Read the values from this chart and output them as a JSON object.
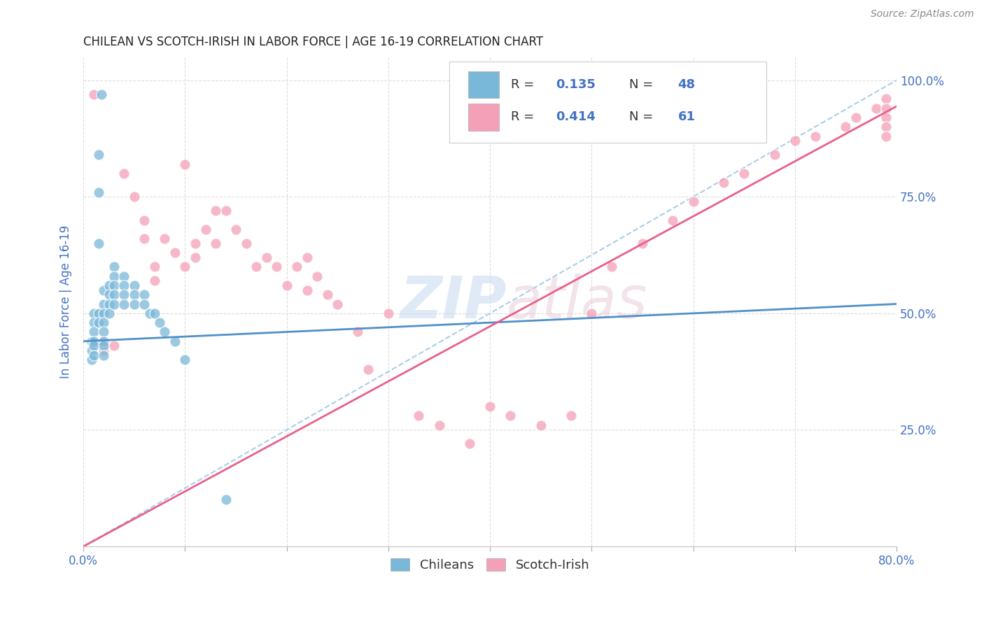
{
  "title": "CHILEAN VS SCOTCH-IRISH IN LABOR FORCE | AGE 16-19 CORRELATION CHART",
  "source": "Source: ZipAtlas.com",
  "ylabel": "In Labor Force | Age 16-19",
  "xlim": [
    0.0,
    0.8
  ],
  "ylim": [
    0.0,
    1.05
  ],
  "watermark_zip": "ZIP",
  "watermark_atlas": "atlas",
  "legend_R1": "0.135",
  "legend_N1": "48",
  "legend_R2": "0.414",
  "legend_N2": "61",
  "color_blue": "#7ab8d9",
  "color_pink": "#f4a0b8",
  "color_trendline_blue_dash": "#a0c8e8",
  "color_trendline_pink": "#e8608a",
  "color_blue_solid": "#5090c8",
  "background_color": "#ffffff",
  "grid_color": "#dddddd",
  "title_color": "#222222",
  "axis_label_color": "#4472c4",
  "tick_color": "#4472c4",
  "blue_intercept": 0.44,
  "blue_slope": 0.1,
  "pink_intercept": 0.0,
  "pink_slope": 1.18,
  "diag_intercept": 0.0,
  "diag_slope": 1.25,
  "scatter_blue_x": [
    0.018,
    0.008,
    0.008,
    0.008,
    0.01,
    0.01,
    0.01,
    0.01,
    0.01,
    0.01,
    0.015,
    0.015,
    0.015,
    0.015,
    0.015,
    0.02,
    0.02,
    0.02,
    0.02,
    0.02,
    0.02,
    0.02,
    0.02,
    0.025,
    0.025,
    0.025,
    0.025,
    0.03,
    0.03,
    0.03,
    0.03,
    0.03,
    0.04,
    0.04,
    0.04,
    0.04,
    0.05,
    0.05,
    0.05,
    0.06,
    0.06,
    0.065,
    0.07,
    0.075,
    0.08,
    0.09,
    0.1,
    0.14
  ],
  "scatter_blue_y": [
    0.97,
    0.44,
    0.42,
    0.4,
    0.5,
    0.48,
    0.46,
    0.44,
    0.43,
    0.41,
    0.84,
    0.76,
    0.65,
    0.5,
    0.48,
    0.55,
    0.52,
    0.5,
    0.48,
    0.46,
    0.44,
    0.43,
    0.41,
    0.56,
    0.54,
    0.52,
    0.5,
    0.6,
    0.58,
    0.56,
    0.54,
    0.52,
    0.58,
    0.56,
    0.54,
    0.52,
    0.56,
    0.54,
    0.52,
    0.54,
    0.52,
    0.5,
    0.5,
    0.48,
    0.46,
    0.44,
    0.4,
    0.1
  ],
  "scatter_pink_x": [
    0.01,
    0.01,
    0.02,
    0.02,
    0.03,
    0.04,
    0.05,
    0.06,
    0.06,
    0.07,
    0.07,
    0.08,
    0.09,
    0.1,
    0.1,
    0.11,
    0.11,
    0.12,
    0.13,
    0.13,
    0.14,
    0.15,
    0.16,
    0.17,
    0.18,
    0.19,
    0.2,
    0.21,
    0.22,
    0.22,
    0.23,
    0.24,
    0.25,
    0.27,
    0.28,
    0.3,
    0.33,
    0.35,
    0.38,
    0.4,
    0.42,
    0.45,
    0.48,
    0.5,
    0.52,
    0.55,
    0.58,
    0.6,
    0.63,
    0.65,
    0.68,
    0.7,
    0.72,
    0.75,
    0.76,
    0.78,
    0.79,
    0.79,
    0.79,
    0.79,
    0.79
  ],
  "scatter_pink_y": [
    0.97,
    0.44,
    0.44,
    0.42,
    0.43,
    0.8,
    0.75,
    0.7,
    0.66,
    0.6,
    0.57,
    0.66,
    0.63,
    0.82,
    0.6,
    0.65,
    0.62,
    0.68,
    0.72,
    0.65,
    0.72,
    0.68,
    0.65,
    0.6,
    0.62,
    0.6,
    0.56,
    0.6,
    0.62,
    0.55,
    0.58,
    0.54,
    0.52,
    0.46,
    0.38,
    0.5,
    0.28,
    0.26,
    0.22,
    0.3,
    0.28,
    0.26,
    0.28,
    0.5,
    0.6,
    0.65,
    0.7,
    0.74,
    0.78,
    0.8,
    0.84,
    0.87,
    0.88,
    0.9,
    0.92,
    0.94,
    0.96,
    0.94,
    0.92,
    0.9,
    0.88
  ]
}
